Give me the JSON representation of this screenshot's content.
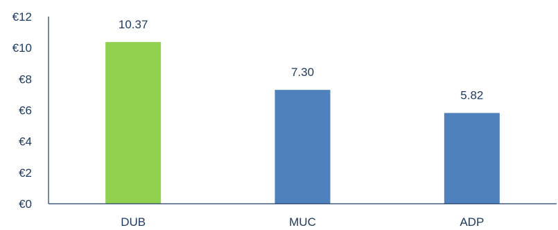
{
  "chart_data": {
    "type": "bar",
    "categories": [
      "DUB",
      "MUC",
      "ADP"
    ],
    "values": [
      10.37,
      7.3,
      5.82
    ],
    "data_labels": [
      "10.37",
      "7.30",
      "5.82"
    ],
    "bar_colors": [
      "#92d050",
      "#4f81bd",
      "#4f81bd"
    ],
    "title": "",
    "xlabel": "",
    "ylabel": "",
    "ylim": [
      0,
      12
    ],
    "y_ticks": [
      0,
      2,
      4,
      6,
      8,
      10,
      12
    ],
    "y_tick_labels": [
      "€0",
      "€2",
      "€4",
      "€6",
      "€8",
      "€10",
      "€12"
    ],
    "grid": false,
    "legend": "none"
  }
}
